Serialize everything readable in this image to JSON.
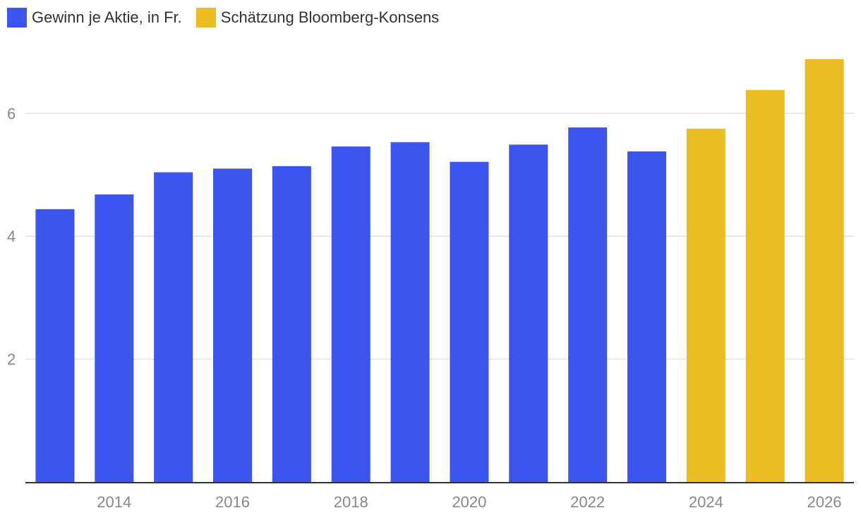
{
  "legend": [
    {
      "label": "Gewinn je Aktie, in Fr.",
      "color": "#3b55ee"
    },
    {
      "label": "Schätzung Bloomberg-Konsens",
      "color": "#ebbd22"
    }
  ],
  "chart_data": {
    "type": "bar",
    "title": "",
    "xlabel": "",
    "ylabel": "",
    "ylim": [
      0,
      7.2
    ],
    "yticks": [
      2,
      4,
      6
    ],
    "xtick_labels": [
      "2014",
      "2016",
      "2018",
      "2020",
      "2022",
      "2024",
      "2026"
    ],
    "grid": true,
    "legend_position": "top-left",
    "categories": [
      "2013",
      "2014",
      "2015",
      "2016",
      "2017",
      "2018",
      "2019",
      "2020",
      "2021",
      "2022",
      "2023",
      "2024",
      "2025",
      "2026"
    ],
    "series": [
      {
        "name": "Gewinn je Aktie, in Fr.",
        "color": "#3b55ee",
        "values": [
          4.44,
          4.68,
          5.04,
          5.1,
          5.14,
          5.46,
          5.53,
          5.21,
          5.49,
          5.77,
          5.38,
          null,
          null,
          null
        ]
      },
      {
        "name": "Schätzung Bloomberg-Konsens",
        "color": "#ebbd22",
        "values": [
          null,
          null,
          null,
          null,
          null,
          null,
          null,
          null,
          null,
          null,
          null,
          5.75,
          6.38,
          6.88
        ]
      }
    ]
  }
}
